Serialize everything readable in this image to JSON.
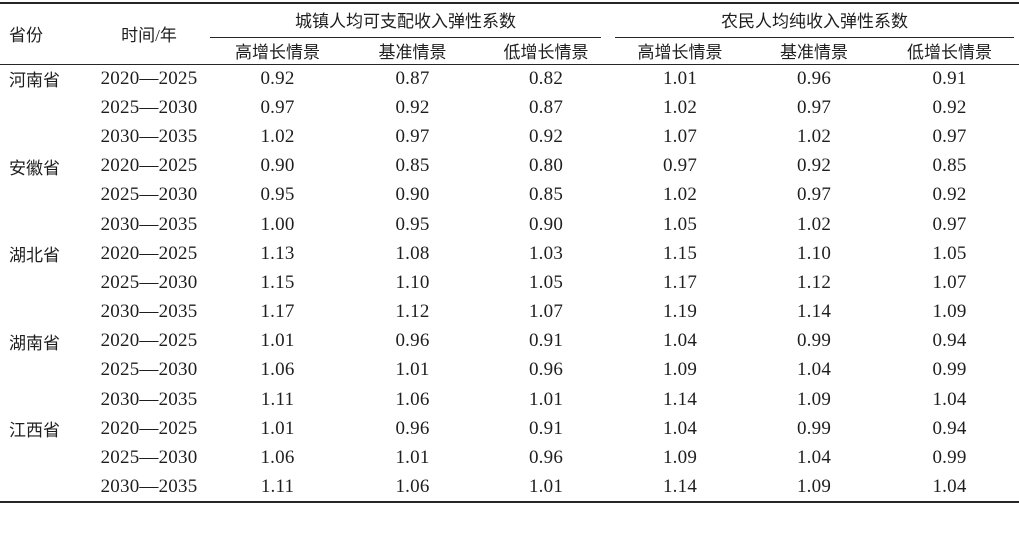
{
  "chart_data": {
    "type": "table",
    "columns": {
      "province": "省份",
      "period": "时间/年",
      "group_urban": "城镇人均可支配收入弹性系数",
      "group_rural": "农民人均纯收入弹性系数",
      "scenarios": [
        "高增长情景",
        "基准情景",
        "低增长情景"
      ]
    },
    "rows": [
      {
        "province": "河南省",
        "period": "2020—2025",
        "urban": [
          "0.92",
          "0.87",
          "0.82"
        ],
        "rural": [
          "1.01",
          "0.96",
          "0.91"
        ]
      },
      {
        "province": "",
        "period": "2025—2030",
        "urban": [
          "0.97",
          "0.92",
          "0.87"
        ],
        "rural": [
          "1.02",
          "0.97",
          "0.92"
        ]
      },
      {
        "province": "",
        "period": "2030—2035",
        "urban": [
          "1.02",
          "0.97",
          "0.92"
        ],
        "rural": [
          "1.07",
          "1.02",
          "0.97"
        ]
      },
      {
        "province": "安徽省",
        "period": "2020—2025",
        "urban": [
          "0.90",
          "0.85",
          "0.80"
        ],
        "rural": [
          "0.97",
          "0.92",
          "0.85"
        ]
      },
      {
        "province": "",
        "period": "2025—2030",
        "urban": [
          "0.95",
          "0.90",
          "0.85"
        ],
        "rural": [
          "1.02",
          "0.97",
          "0.92"
        ]
      },
      {
        "province": "",
        "period": "2030—2035",
        "urban": [
          "1.00",
          "0.95",
          "0.90"
        ],
        "rural": [
          "1.05",
          "1.02",
          "0.97"
        ]
      },
      {
        "province": "湖北省",
        "period": "2020—2025",
        "urban": [
          "1.13",
          "1.08",
          "1.03"
        ],
        "rural": [
          "1.15",
          "1.10",
          "1.05"
        ]
      },
      {
        "province": "",
        "period": "2025—2030",
        "urban": [
          "1.15",
          "1.10",
          "1.05"
        ],
        "rural": [
          "1.17",
          "1.12",
          "1.07"
        ]
      },
      {
        "province": "",
        "period": "2030—2035",
        "urban": [
          "1.17",
          "1.12",
          "1.07"
        ],
        "rural": [
          "1.19",
          "1.14",
          "1.09"
        ]
      },
      {
        "province": "湖南省",
        "period": "2020—2025",
        "urban": [
          "1.01",
          "0.96",
          "0.91"
        ],
        "rural": [
          "1.04",
          "0.99",
          "0.94"
        ]
      },
      {
        "province": "",
        "period": "2025—2030",
        "urban": [
          "1.06",
          "1.01",
          "0.96"
        ],
        "rural": [
          "1.09",
          "1.04",
          "0.99"
        ]
      },
      {
        "province": "",
        "period": "2030—2035",
        "urban": [
          "1.11",
          "1.06",
          "1.01"
        ],
        "rural": [
          "1.14",
          "1.09",
          "1.04"
        ]
      },
      {
        "province": "江西省",
        "period": "2020—2025",
        "urban": [
          "1.01",
          "0.96",
          "0.91"
        ],
        "rural": [
          "1.04",
          "0.99",
          "0.94"
        ]
      },
      {
        "province": "",
        "period": "2025—2030",
        "urban": [
          "1.06",
          "1.01",
          "0.96"
        ],
        "rural": [
          "1.09",
          "1.04",
          "0.99"
        ]
      },
      {
        "province": "",
        "period": "2030—2035",
        "urban": [
          "1.11",
          "1.06",
          "1.01"
        ],
        "rural": [
          "1.14",
          "1.09",
          "1.04"
        ]
      }
    ],
    "layout": {
      "ink_color": "#1e1e1e",
      "rule_color": "#262626",
      "background": "#ffffff"
    }
  }
}
